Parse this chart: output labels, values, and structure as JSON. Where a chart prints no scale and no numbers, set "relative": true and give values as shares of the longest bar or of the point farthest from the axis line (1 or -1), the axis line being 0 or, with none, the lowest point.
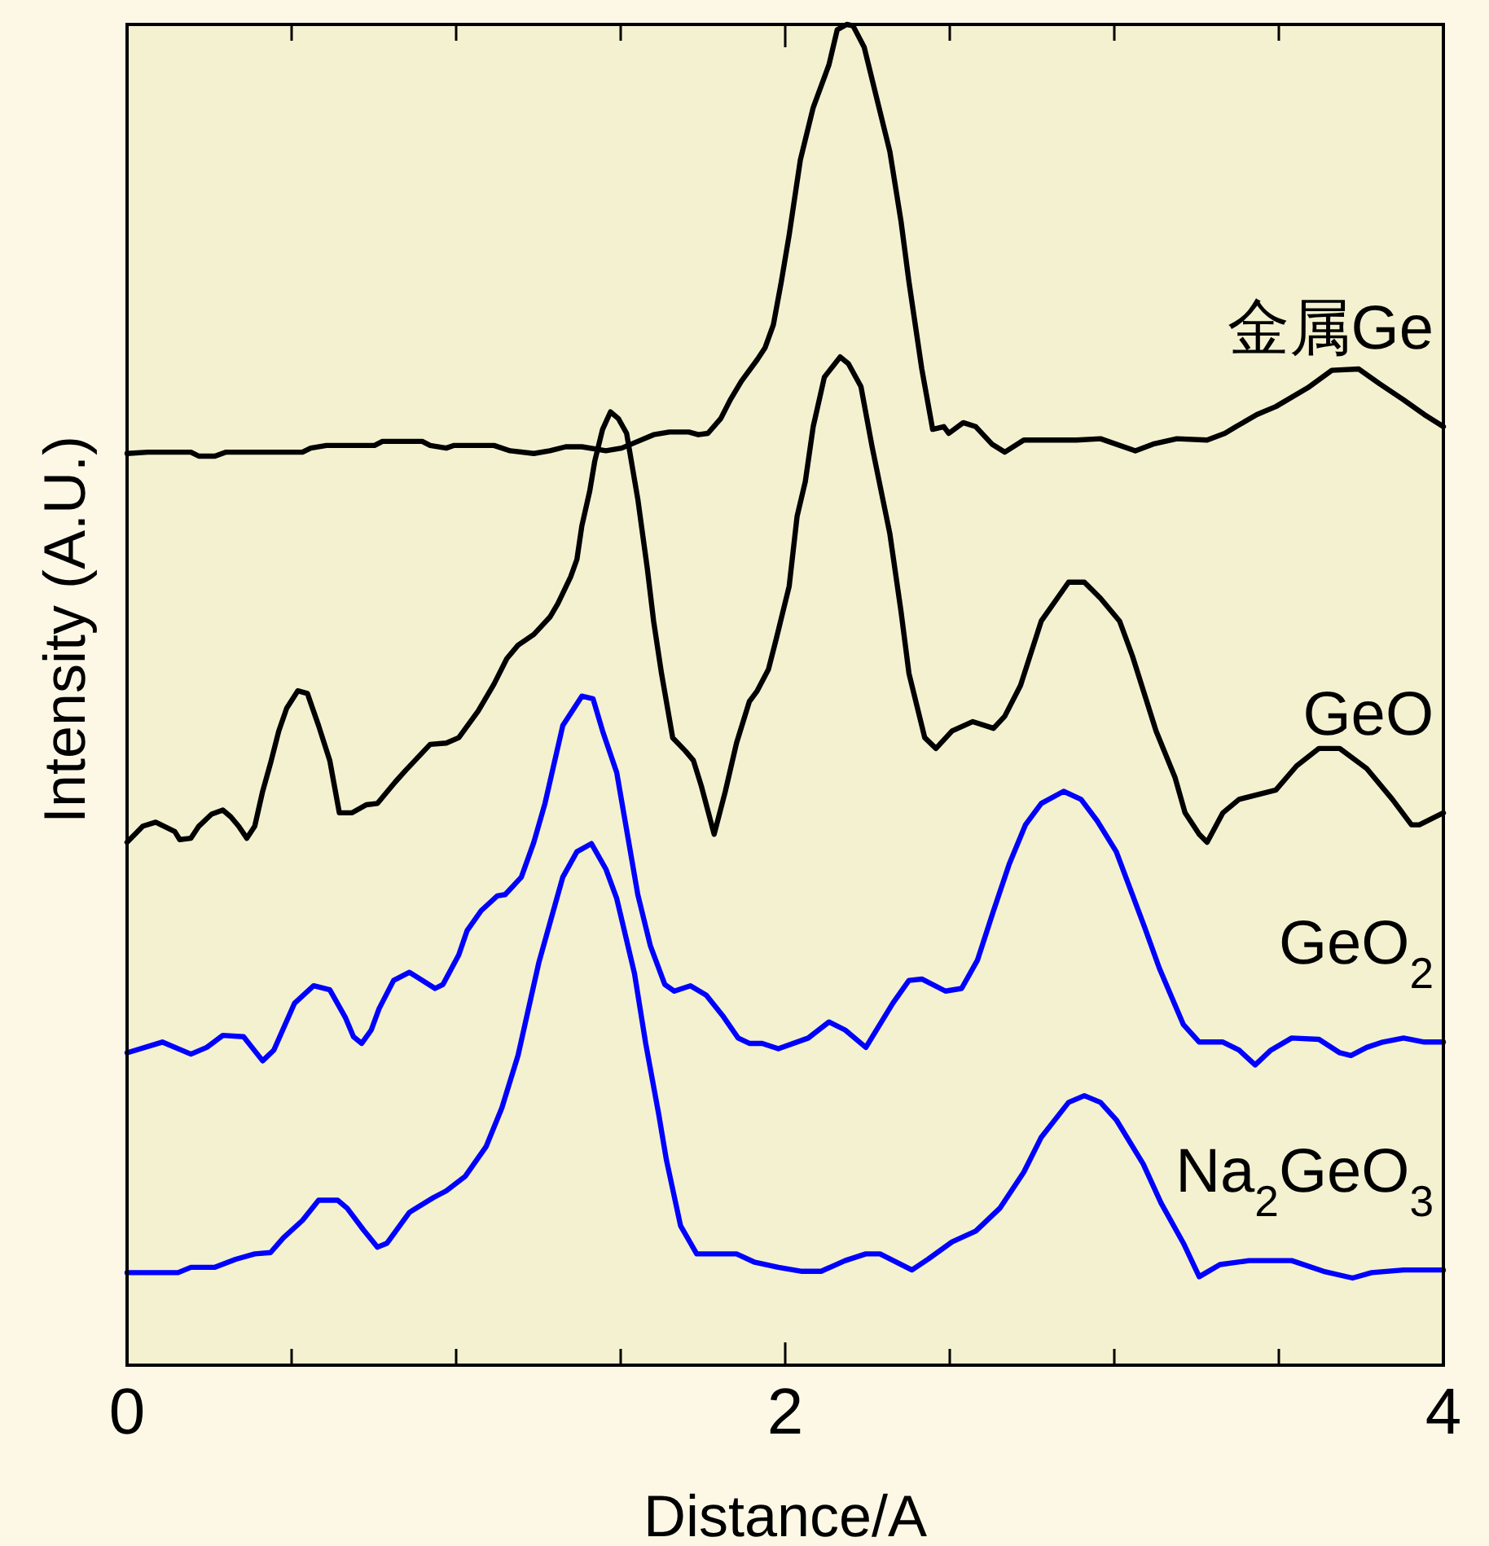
{
  "chart_data": {
    "type": "line",
    "relative": true,
    "xlabel": "Distance/A",
    "ylabel": "Intensity (A.U.)",
    "xlim": [
      0,
      4
    ],
    "xticks": [
      0,
      {
        "value": 0.5,
        "label": null
      },
      {
        "value": 1,
        "label": null
      },
      {
        "value": 1.5,
        "label": null
      },
      2,
      {
        "value": 2.5,
        "label": null
      },
      {
        "value": 3,
        "label": null
      },
      {
        "value": 3.5,
        "label": null
      },
      4
    ],
    "marker": "none",
    "line_style": "solid",
    "series": [
      {
        "name": "金属Ge",
        "color": "#000000",
        "x": [
          0,
          0.063,
          0.194,
          0.218,
          0.267,
          0.301,
          0.533,
          0.558,
          0.606,
          0.752,
          0.776,
          0.897,
          0.921,
          0.97,
          0.994,
          1.115,
          1.164,
          1.236,
          1.285,
          1.333,
          1.382,
          1.455,
          1.503,
          1.552,
          1.6,
          1.648,
          1.707,
          1.736,
          1.765,
          1.804,
          1.833,
          1.867,
          1.915,
          1.939,
          1.964,
          1.988,
          2.012,
          2.046,
          2.085,
          2.133,
          2.158,
          2.187,
          2.206,
          2.24,
          2.279,
          2.318,
          2.352,
          2.376,
          2.415,
          2.448,
          2.482,
          2.497,
          2.541,
          2.579,
          2.628,
          2.667,
          2.725,
          2.885,
          2.958,
          3.064,
          3.118,
          3.19,
          3.282,
          3.336,
          3.37,
          3.433,
          3.491,
          3.588,
          3.661,
          3.743,
          3.806,
          3.879,
          3.942,
          4
        ],
        "values": [
          0.68,
          0.681,
          0.681,
          0.678,
          0.678,
          0.681,
          0.681,
          0.684,
          0.686,
          0.686,
          0.689,
          0.689,
          0.686,
          0.684,
          0.686,
          0.686,
          0.682,
          0.68,
          0.682,
          0.685,
          0.685,
          0.682,
          0.684,
          0.689,
          0.694,
          0.696,
          0.696,
          0.694,
          0.695,
          0.706,
          0.72,
          0.734,
          0.75,
          0.759,
          0.776,
          0.808,
          0.843,
          0.899,
          0.938,
          0.97,
          0.996,
          1,
          0.999,
          0.983,
          0.944,
          0.905,
          0.853,
          0.808,
          0.743,
          0.698,
          0.7,
          0.695,
          0.703,
          0.7,
          0.687,
          0.681,
          0.69,
          0.69,
          0.691,
          0.682,
          0.687,
          0.691,
          0.69,
          0.695,
          0.7,
          0.709,
          0.715,
          0.729,
          0.742,
          0.743,
          0.732,
          0.72,
          0.709,
          0.7
        ]
      },
      {
        "name": "GeO",
        "color": "#000000",
        "x": [
          0,
          0.048,
          0.087,
          0.145,
          0.16,
          0.194,
          0.218,
          0.257,
          0.291,
          0.315,
          0.339,
          0.364,
          0.388,
          0.412,
          0.436,
          0.461,
          0.485,
          0.519,
          0.548,
          0.582,
          0.616,
          0.645,
          0.684,
          0.727,
          0.761,
          0.815,
          0.848,
          0.921,
          0.97,
          1.008,
          1.067,
          1.115,
          1.154,
          1.188,
          1.236,
          1.285,
          1.309,
          1.348,
          1.367,
          1.382,
          1.406,
          1.421,
          1.445,
          1.469,
          1.493,
          1.518,
          1.552,
          1.581,
          1.6,
          1.624,
          1.658,
          1.697,
          1.721,
          1.745,
          1.784,
          1.818,
          1.852,
          1.891,
          1.915,
          1.949,
          1.973,
          2.012,
          2.036,
          2.061,
          2.085,
          2.119,
          2.167,
          2.192,
          2.23,
          2.264,
          2.318,
          2.352,
          2.376,
          2.424,
          2.458,
          2.507,
          2.57,
          2.633,
          2.667,
          2.715,
          2.778,
          2.861,
          2.909,
          2.958,
          3.016,
          3.055,
          3.127,
          3.185,
          3.215,
          3.258,
          3.282,
          3.33,
          3.379,
          3.491,
          3.554,
          3.622,
          3.685,
          3.767,
          3.845,
          3.903,
          3.927,
          4
        ],
        "values": [
          0.39,
          0.402,
          0.405,
          0.398,
          0.392,
          0.393,
          0.402,
          0.411,
          0.414,
          0.409,
          0.402,
          0.393,
          0.402,
          0.428,
          0.449,
          0.473,
          0.49,
          0.503,
          0.501,
          0.477,
          0.451,
          0.412,
          0.412,
          0.418,
          0.419,
          0.435,
          0.444,
          0.463,
          0.464,
          0.468,
          0.488,
          0.508,
          0.527,
          0.537,
          0.545,
          0.558,
          0.568,
          0.588,
          0.601,
          0.626,
          0.652,
          0.674,
          0.698,
          0.711,
          0.706,
          0.695,
          0.646,
          0.594,
          0.555,
          0.516,
          0.468,
          0.458,
          0.451,
          0.432,
          0.396,
          0.428,
          0.464,
          0.495,
          0.503,
          0.519,
          0.542,
          0.581,
          0.633,
          0.659,
          0.7,
          0.737,
          0.752,
          0.747,
          0.73,
          0.685,
          0.62,
          0.562,
          0.516,
          0.468,
          0.46,
          0.473,
          0.48,
          0.475,
          0.484,
          0.507,
          0.555,
          0.584,
          0.584,
          0.572,
          0.555,
          0.529,
          0.473,
          0.438,
          0.412,
          0.396,
          0.39,
          0.412,
          0.422,
          0.429,
          0.447,
          0.46,
          0.46,
          0.445,
          0.422,
          0.403,
          0.403,
          0.412
        ]
      },
      {
        "name": "GeO$_{2}$",
        "color": "#0000ff",
        "x": [
          0,
          0.107,
          0.194,
          0.242,
          0.291,
          0.354,
          0.412,
          0.446,
          0.509,
          0.567,
          0.616,
          0.664,
          0.688,
          0.713,
          0.742,
          0.766,
          0.81,
          0.858,
          0.936,
          0.96,
          1.008,
          1.033,
          1.076,
          1.125,
          1.149,
          1.198,
          1.236,
          1.27,
          1.324,
          1.382,
          1.416,
          1.445,
          1.488,
          1.552,
          1.59,
          1.634,
          1.663,
          1.712,
          1.76,
          1.809,
          1.857,
          1.891,
          1.93,
          1.979,
          2.07,
          2.133,
          2.182,
          2.245,
          2.327,
          2.376,
          2.415,
          2.487,
          2.536,
          2.584,
          2.633,
          2.681,
          2.73,
          2.778,
          2.846,
          2.899,
          2.948,
          3.006,
          3.055,
          3.093,
          3.137,
          3.21,
          3.258,
          3.33,
          3.379,
          3.428,
          3.476,
          3.539,
          3.622,
          3.685,
          3.719,
          3.767,
          3.816,
          3.879,
          3.942,
          4
        ],
        "values": [
          0.233,
          0.241,
          0.232,
          0.237,
          0.246,
          0.245,
          0.227,
          0.235,
          0.27,
          0.283,
          0.28,
          0.259,
          0.245,
          0.24,
          0.25,
          0.266,
          0.287,
          0.293,
          0.281,
          0.284,
          0.306,
          0.324,
          0.339,
          0.35,
          0.351,
          0.364,
          0.39,
          0.419,
          0.477,
          0.499,
          0.497,
          0.473,
          0.442,
          0.351,
          0.313,
          0.284,
          0.279,
          0.283,
          0.276,
          0.261,
          0.244,
          0.24,
          0.24,
          0.236,
          0.244,
          0.256,
          0.25,
          0.237,
          0.27,
          0.287,
          0.288,
          0.279,
          0.281,
          0.302,
          0.339,
          0.374,
          0.403,
          0.419,
          0.428,
          0.422,
          0.406,
          0.383,
          0.351,
          0.326,
          0.296,
          0.254,
          0.241,
          0.241,
          0.235,
          0.224,
          0.235,
          0.244,
          0.243,
          0.233,
          0.231,
          0.237,
          0.241,
          0.244,
          0.241,
          0.241
        ]
      },
      {
        "name": "Na$_{2}$GeO$_{3}$",
        "color": "#0000ff",
        "x": [
          0,
          0.155,
          0.194,
          0.267,
          0.33,
          0.388,
          0.436,
          0.475,
          0.533,
          0.582,
          0.64,
          0.669,
          0.718,
          0.761,
          0.79,
          0.858,
          0.931,
          0.97,
          1.028,
          1.091,
          1.139,
          1.188,
          1.251,
          1.324,
          1.367,
          1.411,
          1.455,
          1.488,
          1.542,
          1.576,
          1.615,
          1.639,
          1.682,
          1.731,
          1.852,
          1.905,
          1.979,
          2.051,
          2.109,
          2.182,
          2.245,
          2.288,
          2.385,
          2.434,
          2.507,
          2.579,
          2.652,
          2.725,
          2.778,
          2.861,
          2.909,
          2.958,
          3.006,
          3.088,
          3.142,
          3.21,
          3.258,
          3.321,
          3.409,
          3.539,
          3.636,
          3.724,
          3.782,
          3.879,
          4
        ],
        "values": [
          0.069,
          0.069,
          0.073,
          0.073,
          0.079,
          0.083,
          0.084,
          0.095,
          0.108,
          0.123,
          0.123,
          0.117,
          0.101,
          0.088,
          0.091,
          0.114,
          0.125,
          0.13,
          0.141,
          0.163,
          0.192,
          0.231,
          0.3,
          0.364,
          0.383,
          0.389,
          0.37,
          0.348,
          0.292,
          0.24,
          0.188,
          0.153,
          0.104,
          0.083,
          0.083,
          0.077,
          0.073,
          0.07,
          0.07,
          0.078,
          0.083,
          0.083,
          0.071,
          0.079,
          0.092,
          0.1,
          0.117,
          0.144,
          0.17,
          0.196,
          0.201,
          0.196,
          0.183,
          0.15,
          0.121,
          0.091,
          0.066,
          0.075,
          0.078,
          0.078,
          0.07,
          0.065,
          0.069,
          0.071,
          0.071
        ]
      }
    ]
  }
}
